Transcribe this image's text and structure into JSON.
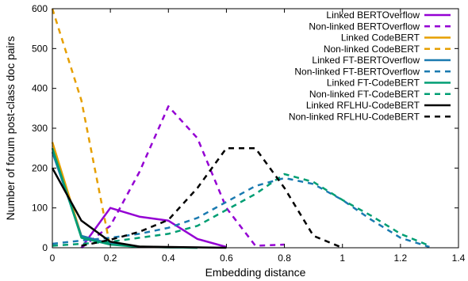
{
  "chart_data": {
    "type": "line",
    "title": "",
    "xlabel": "Embedding distance",
    "ylabel": "Number of forum post-class doc pairs",
    "xlim": [
      0,
      1.4
    ],
    "ylim": [
      0,
      600
    ],
    "x_ticks": [
      "0",
      "0.2",
      "0.4",
      "0.6",
      "0.8",
      "1",
      "1.2",
      "1.4"
    ],
    "y_ticks": [
      "0",
      "100",
      "200",
      "300",
      "400",
      "500",
      "600"
    ],
    "grid": false,
    "legend_position": "top-right",
    "series": [
      {
        "name": "Linked BERTOverflow",
        "color": "#9400d3",
        "dash": "solid",
        "x": [
          0.1,
          0.2,
          0.3,
          0.4,
          0.5,
          0.6
        ],
        "y": [
          0,
          100,
          78,
          68,
          22,
          2
        ]
      },
      {
        "name": "Non-linked BERTOverflow",
        "color": "#9400d3",
        "dash": "dashed",
        "x": [
          0.1,
          0.2,
          0.3,
          0.4,
          0.5,
          0.6,
          0.7,
          0.8
        ],
        "y": [
          0,
          55,
          190,
          355,
          275,
          100,
          5,
          8
        ]
      },
      {
        "name": "Linked CodeBERT",
        "color": "#e69f00",
        "dash": "solid",
        "x": [
          0,
          0.1,
          0.2,
          0.3,
          0.4,
          0.5
        ],
        "y": [
          265,
          30,
          10,
          3,
          1,
          0
        ]
      },
      {
        "name": "Non-linked CodeBERT",
        "color": "#e69f00",
        "dash": "dashed",
        "x": [
          0,
          0.1,
          0.2
        ],
        "y": [
          600,
          370,
          0
        ]
      },
      {
        "name": "Linked FT-BERTOverflow",
        "color": "#1a7ab0",
        "dash": "solid",
        "x": [
          0,
          0.1,
          0.2,
          0.3,
          0.4,
          0.5
        ],
        "y": [
          240,
          30,
          10,
          3,
          1,
          0
        ]
      },
      {
        "name": "Non-linked FT-BERTOverflow",
        "color": "#1a7ab0",
        "dash": "dashed",
        "x": [
          0,
          0.1,
          0.2,
          0.3,
          0.4,
          0.5,
          0.6,
          0.7,
          0.8,
          0.9,
          1.0,
          1.1,
          1.2,
          1.3
        ],
        "y": [
          10,
          18,
          25,
          35,
          50,
          75,
          115,
          155,
          175,
          160,
          120,
          70,
          25,
          2
        ]
      },
      {
        "name": "Linked FT-CodeBERT",
        "color": "#009e73",
        "dash": "solid",
        "x": [
          0,
          0.1,
          0.2,
          0.3,
          0.4,
          0.5
        ],
        "y": [
          250,
          25,
          8,
          2,
          1,
          0
        ]
      },
      {
        "name": "Non-linked FT-CodeBERT",
        "color": "#009e73",
        "dash": "dashed",
        "x": [
          0,
          0.1,
          0.2,
          0.3,
          0.4,
          0.5,
          0.6,
          0.7,
          0.8,
          0.9,
          1.0,
          1.1,
          1.2,
          1.3
        ],
        "y": [
          5,
          10,
          15,
          25,
          35,
          55,
          95,
          135,
          185,
          165,
          120,
          80,
          35,
          5
        ]
      },
      {
        "name": "Linked RFLHU-CodeBERT",
        "color": "#000000",
        "dash": "solid",
        "x": [
          0,
          0.1,
          0.2,
          0.3,
          0.4,
          0.5,
          0.6
        ],
        "y": [
          200,
          68,
          15,
          3,
          2,
          1,
          0
        ]
      },
      {
        "name": "Non-linked RFLHU-CodeBERT",
        "color": "#000000",
        "dash": "dashed",
        "x": [
          0.1,
          0.2,
          0.3,
          0.4,
          0.5,
          0.6,
          0.7,
          0.8,
          0.9,
          1.0
        ],
        "y": [
          5,
          20,
          40,
          70,
          150,
          250,
          250,
          150,
          30,
          0
        ]
      }
    ]
  }
}
